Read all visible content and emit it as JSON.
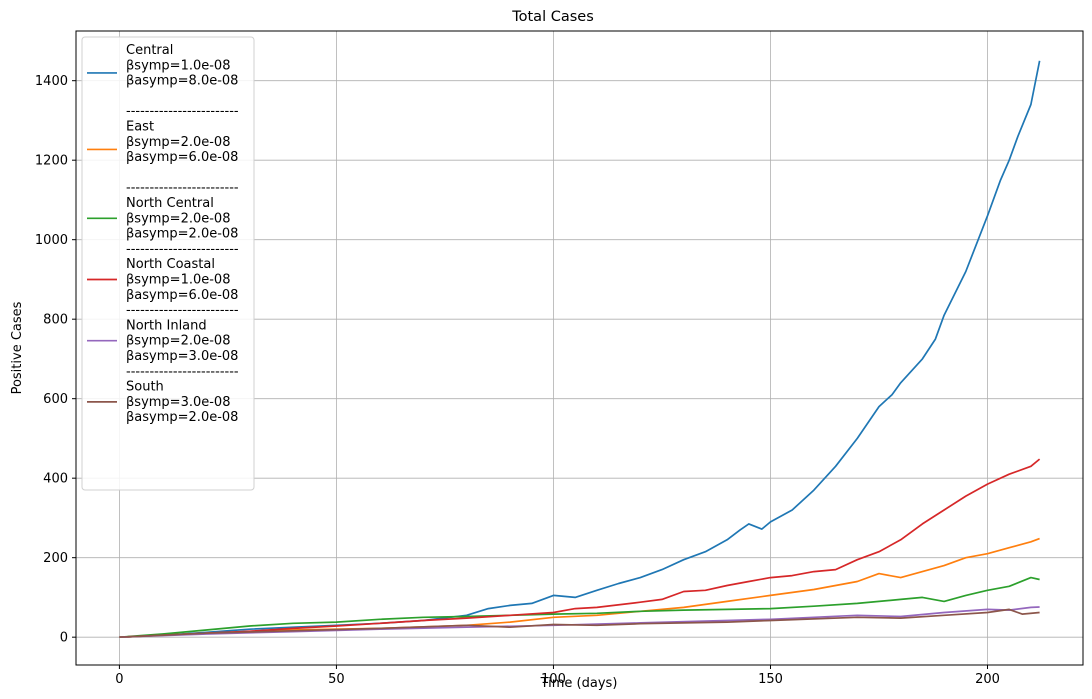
{
  "chart_data": {
    "type": "line",
    "title": "Total Cases",
    "xlabel": "Time (days)",
    "ylabel": "Positive Cases",
    "xlim": [
      -10,
      222
    ],
    "ylim": [
      -70,
      1525
    ],
    "xticks": [
      0,
      50,
      100,
      150,
      200
    ],
    "yticks": [
      0,
      200,
      400,
      600,
      800,
      1000,
      1200,
      1400
    ],
    "grid": true,
    "legend_position": "upper-left",
    "legend_separator": "------------------------",
    "series": [
      {
        "name": "Central",
        "legend_lines": [
          "Central",
          "βsymp=1.0e-08",
          "βasymp=8.0e-08",
          ""
        ],
        "color": "#1f77b4",
        "points": [
          [
            0,
            0
          ],
          [
            10,
            5
          ],
          [
            20,
            12
          ],
          [
            30,
            20
          ],
          [
            40,
            25
          ],
          [
            50,
            30
          ],
          [
            60,
            35
          ],
          [
            70,
            42
          ],
          [
            80,
            55
          ],
          [
            85,
            72
          ],
          [
            90,
            80
          ],
          [
            95,
            85
          ],
          [
            100,
            105
          ],
          [
            105,
            100
          ],
          [
            110,
            118
          ],
          [
            115,
            135
          ],
          [
            120,
            150
          ],
          [
            125,
            170
          ],
          [
            130,
            195
          ],
          [
            135,
            215
          ],
          [
            140,
            245
          ],
          [
            143,
            270
          ],
          [
            145,
            285
          ],
          [
            148,
            272
          ],
          [
            150,
            290
          ],
          [
            155,
            320
          ],
          [
            160,
            370
          ],
          [
            165,
            430
          ],
          [
            170,
            500
          ],
          [
            175,
            580
          ],
          [
            178,
            610
          ],
          [
            180,
            640
          ],
          [
            185,
            700
          ],
          [
            188,
            750
          ],
          [
            190,
            810
          ],
          [
            195,
            920
          ],
          [
            200,
            1060
          ],
          [
            203,
            1150
          ],
          [
            205,
            1200
          ],
          [
            207,
            1260
          ],
          [
            210,
            1340
          ],
          [
            212,
            1450
          ]
        ]
      },
      {
        "name": "East",
        "legend_lines": [
          "East",
          "βsymp=2.0e-08",
          "βasymp=6.0e-08",
          ""
        ],
        "color": "#ff7f0e",
        "points": [
          [
            0,
            0
          ],
          [
            20,
            10
          ],
          [
            40,
            18
          ],
          [
            60,
            22
          ],
          [
            80,
            30
          ],
          [
            90,
            38
          ],
          [
            100,
            50
          ],
          [
            110,
            55
          ],
          [
            120,
            65
          ],
          [
            130,
            75
          ],
          [
            140,
            90
          ],
          [
            150,
            105
          ],
          [
            160,
            120
          ],
          [
            170,
            140
          ],
          [
            175,
            160
          ],
          [
            180,
            150
          ],
          [
            185,
            165
          ],
          [
            190,
            180
          ],
          [
            195,
            200
          ],
          [
            200,
            210
          ],
          [
            205,
            225
          ],
          [
            210,
            240
          ],
          [
            212,
            248
          ]
        ]
      },
      {
        "name": "North Central",
        "legend_lines": [
          "North Central",
          "βsymp=2.0e-08",
          "βasymp=2.0e-08"
        ],
        "color": "#2ca02c",
        "points": [
          [
            0,
            0
          ],
          [
            10,
            8
          ],
          [
            20,
            18
          ],
          [
            30,
            28
          ],
          [
            40,
            35
          ],
          [
            50,
            38
          ],
          [
            60,
            45
          ],
          [
            70,
            50
          ],
          [
            80,
            52
          ],
          [
            90,
            55
          ],
          [
            100,
            58
          ],
          [
            110,
            60
          ],
          [
            120,
            65
          ],
          [
            130,
            68
          ],
          [
            140,
            70
          ],
          [
            150,
            72
          ],
          [
            160,
            78
          ],
          [
            170,
            85
          ],
          [
            180,
            95
          ],
          [
            185,
            100
          ],
          [
            190,
            90
          ],
          [
            195,
            105
          ],
          [
            200,
            118
          ],
          [
            205,
            128
          ],
          [
            210,
            150
          ],
          [
            212,
            145
          ]
        ]
      },
      {
        "name": "North Coastal",
        "legend_lines": [
          "North Coastal",
          "βsymp=1.0e-08",
          "βasymp=6.0e-08"
        ],
        "color": "#d62728",
        "points": [
          [
            0,
            0
          ],
          [
            10,
            5
          ],
          [
            20,
            10
          ],
          [
            30,
            15
          ],
          [
            40,
            22
          ],
          [
            50,
            28
          ],
          [
            60,
            35
          ],
          [
            70,
            42
          ],
          [
            80,
            48
          ],
          [
            90,
            55
          ],
          [
            100,
            62
          ],
          [
            105,
            72
          ],
          [
            110,
            75
          ],
          [
            120,
            88
          ],
          [
            125,
            95
          ],
          [
            130,
            115
          ],
          [
            135,
            118
          ],
          [
            140,
            130
          ],
          [
            145,
            140
          ],
          [
            150,
            150
          ],
          [
            155,
            155
          ],
          [
            160,
            165
          ],
          [
            165,
            170
          ],
          [
            170,
            195
          ],
          [
            175,
            215
          ],
          [
            180,
            245
          ],
          [
            185,
            285
          ],
          [
            190,
            320
          ],
          [
            195,
            355
          ],
          [
            200,
            385
          ],
          [
            205,
            410
          ],
          [
            210,
            430
          ],
          [
            212,
            448
          ]
        ]
      },
      {
        "name": "North Inland",
        "legend_lines": [
          "North Inland",
          "βsymp=2.0e-08",
          "βasymp=3.0e-08"
        ],
        "color": "#9467bd",
        "points": [
          [
            0,
            0
          ],
          [
            20,
            8
          ],
          [
            40,
            14
          ],
          [
            60,
            20
          ],
          [
            80,
            25
          ],
          [
            100,
            30
          ],
          [
            120,
            36
          ],
          [
            140,
            42
          ],
          [
            150,
            45
          ],
          [
            160,
            50
          ],
          [
            170,
            55
          ],
          [
            180,
            52
          ],
          [
            190,
            62
          ],
          [
            200,
            70
          ],
          [
            205,
            68
          ],
          [
            210,
            75
          ],
          [
            212,
            76
          ]
        ]
      },
      {
        "name": "South",
        "legend_lines": [
          "South",
          "βsymp=3.0e-08",
          "βasymp=2.0e-08"
        ],
        "color": "#8c564b",
        "points": [
          [
            0,
            0
          ],
          [
            20,
            10
          ],
          [
            40,
            16
          ],
          [
            60,
            22
          ],
          [
            80,
            30
          ],
          [
            90,
            25
          ],
          [
            100,
            32
          ],
          [
            110,
            30
          ],
          [
            120,
            34
          ],
          [
            130,
            36
          ],
          [
            140,
            38
          ],
          [
            150,
            42
          ],
          [
            160,
            46
          ],
          [
            170,
            50
          ],
          [
            180,
            48
          ],
          [
            190,
            55
          ],
          [
            200,
            62
          ],
          [
            205,
            70
          ],
          [
            208,
            58
          ],
          [
            212,
            62
          ]
        ]
      }
    ]
  }
}
